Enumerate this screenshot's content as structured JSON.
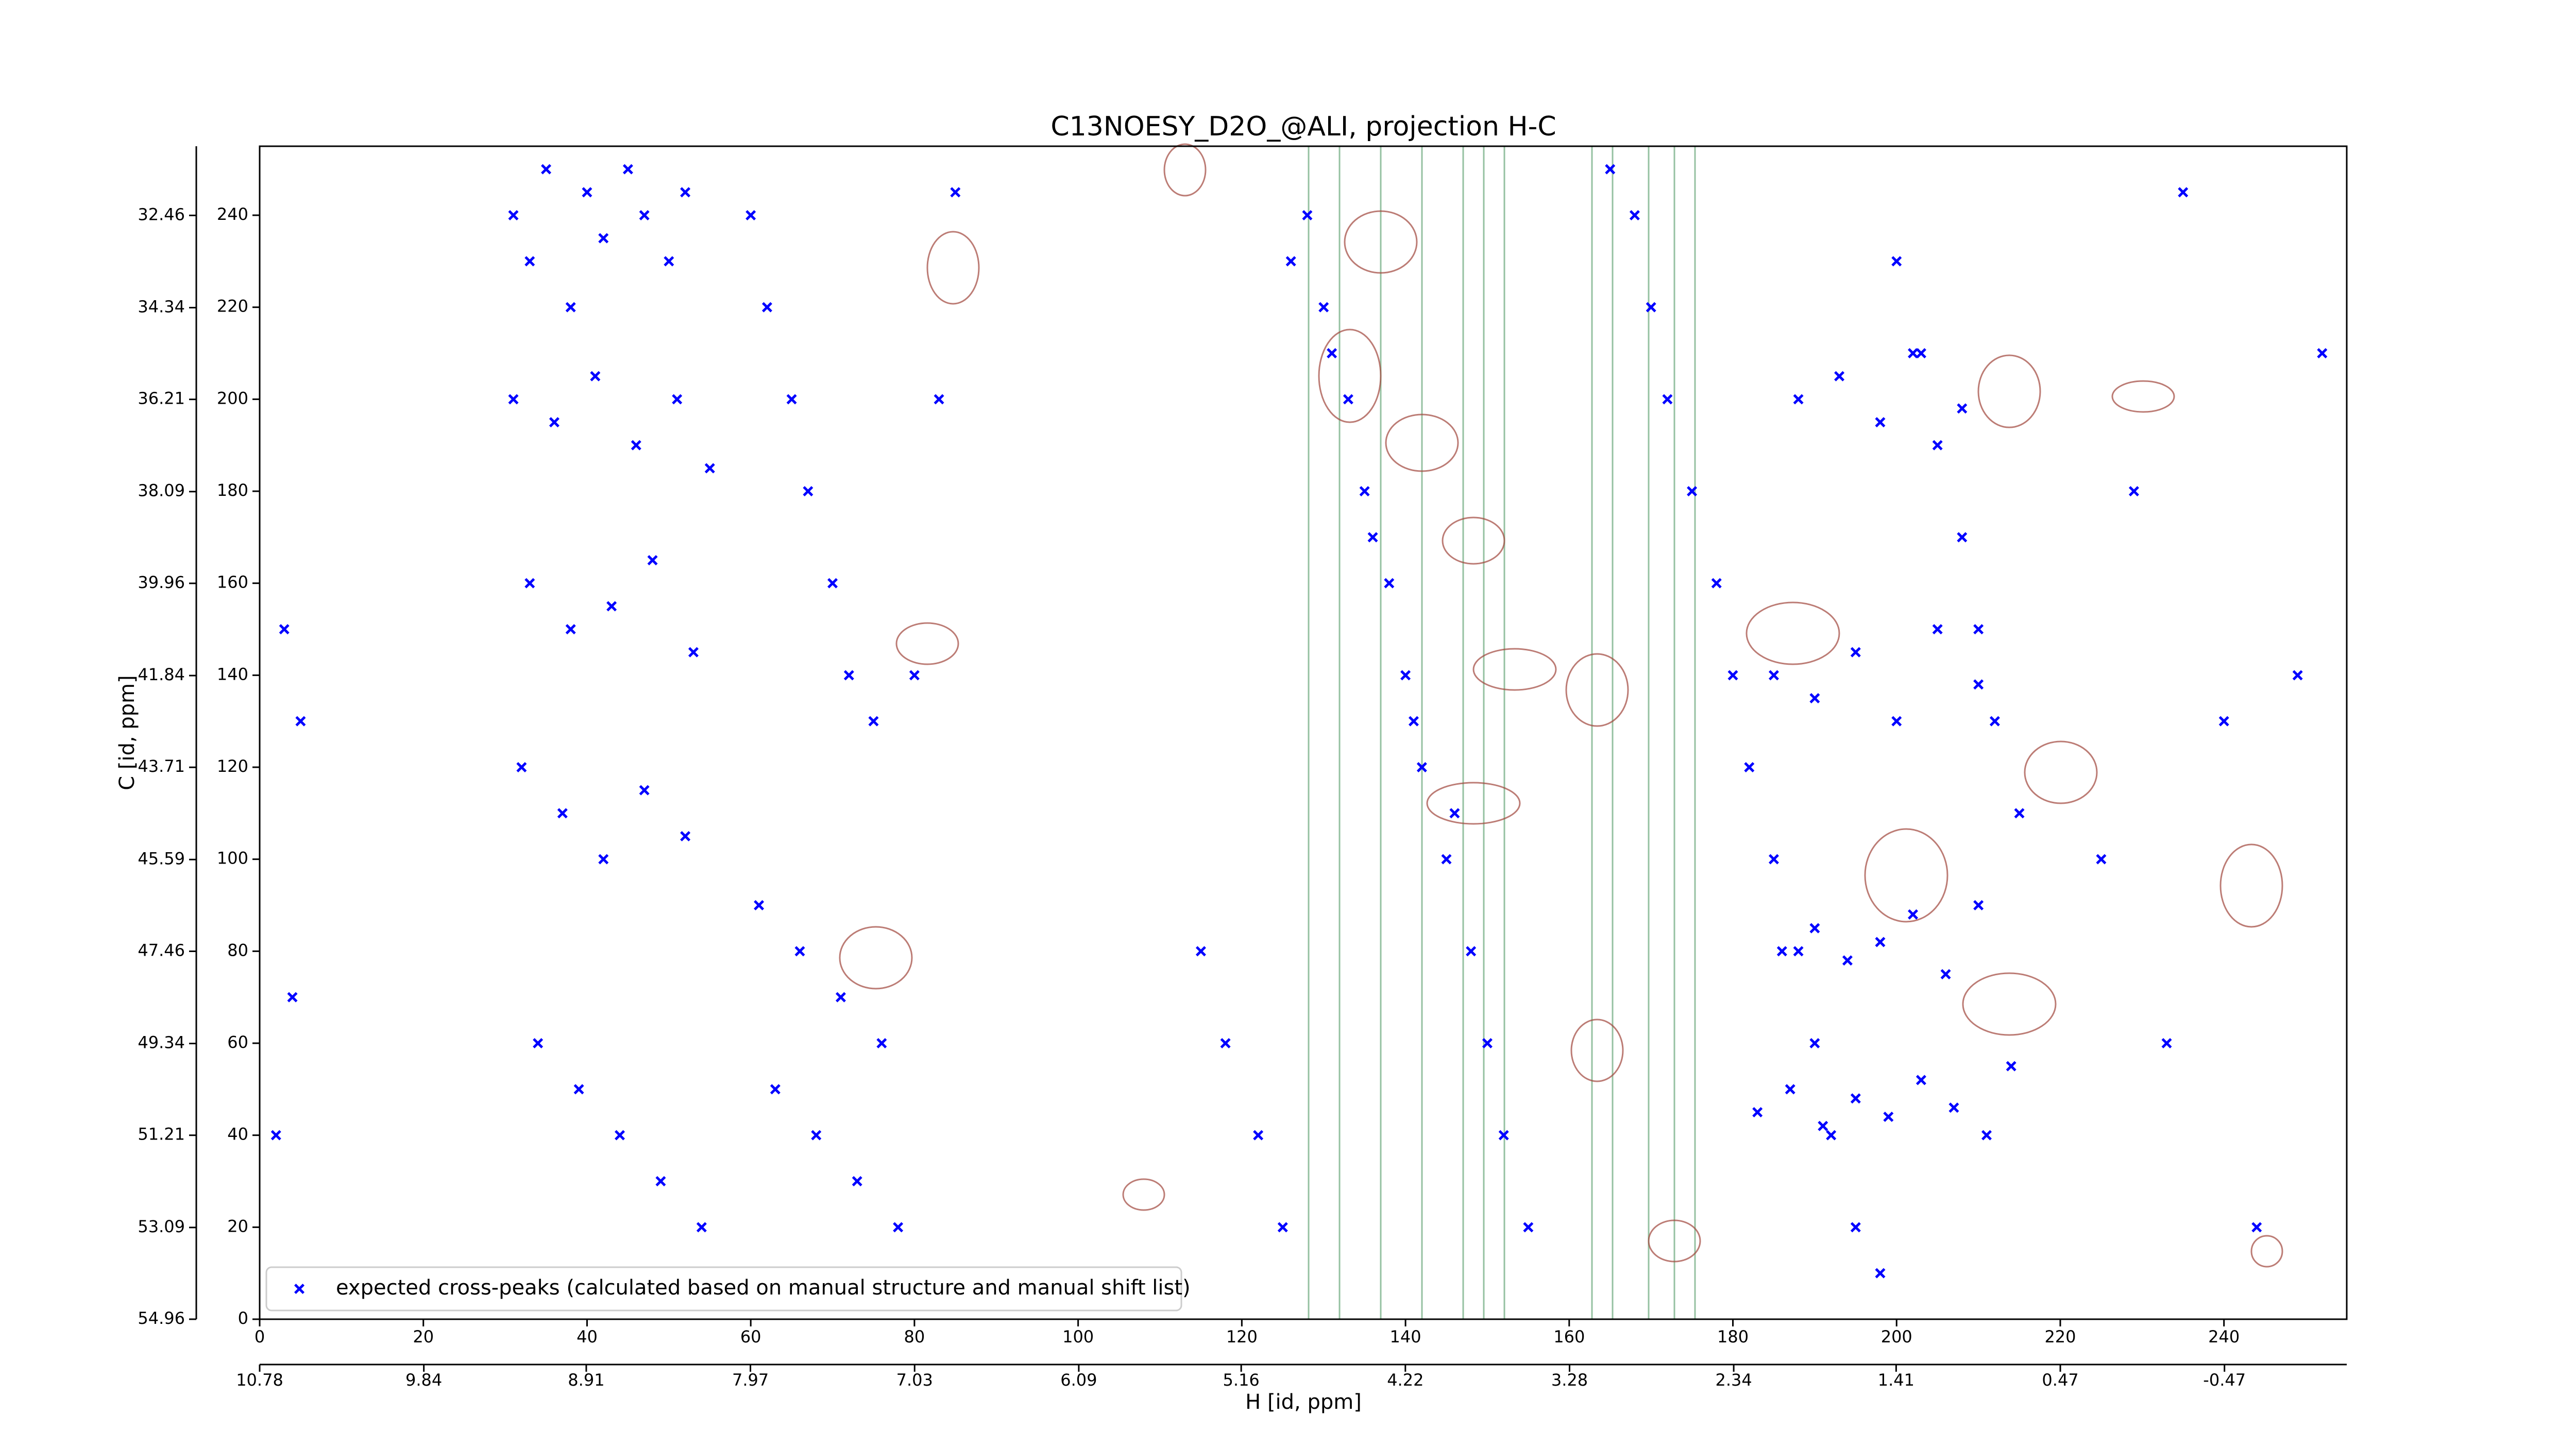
{
  "chart_data": {
    "type": "scatter",
    "title": "C13NOESY_D2O_@ALI, projection H-C",
    "x_label": "H [id, ppm]",
    "y_label": "C [id, ppm]",
    "xlim": [
      0,
      255
    ],
    "ylim": [
      0,
      255
    ],
    "xticks": [
      0,
      20,
      40,
      60,
      80,
      100,
      120,
      140,
      160,
      180,
      200,
      220,
      240
    ],
    "yticks": [
      0,
      20,
      40,
      60,
      80,
      100,
      120,
      140,
      160,
      180,
      200,
      220,
      240
    ],
    "x2lim": [
      10.78,
      -1.17
    ],
    "x2ticks": [
      10.78,
      9.84,
      8.91,
      7.97,
      7.03,
      6.09,
      5.16,
      4.22,
      3.28,
      2.34,
      1.41,
      0.47,
      -0.47
    ],
    "y2lim": [
      54.96,
      31.05
    ],
    "y2ticks": [
      54.96,
      53.09,
      51.21,
      49.34,
      47.46,
      45.59,
      43.71,
      41.84,
      39.96,
      38.09,
      36.21,
      34.34,
      32.46
    ],
    "legend": "lower left",
    "series": [
      {
        "name": "expected cross-peaks (calculated based on manual structure and manual shift list)",
        "color": "#0000ff",
        "x": [
          31,
          33,
          35,
          38,
          40,
          42,
          45,
          47,
          50,
          52,
          31,
          36,
          41,
          46,
          51,
          55,
          33,
          38,
          43,
          48,
          53,
          32,
          37,
          42,
          47,
          52,
          34,
          39,
          44,
          49,
          54,
          60,
          62,
          65,
          67,
          70,
          72,
          75,
          61,
          66,
          71,
          76,
          63,
          68,
          73,
          78,
          80,
          83,
          85,
          115,
          118,
          122,
          125,
          128,
          130,
          133,
          135,
          138,
          140,
          142,
          145,
          148,
          150,
          152,
          155,
          126,
          131,
          136,
          141,
          146,
          165,
          168,
          170,
          172,
          175,
          178,
          180,
          182,
          185,
          188,
          190,
          192,
          195,
          198,
          200,
          202,
          205,
          208,
          210,
          212,
          215,
          183,
          187,
          191,
          195,
          199,
          203,
          207,
          211,
          214,
          186,
          190,
          194,
          198,
          202,
          206,
          210,
          185,
          190,
          195,
          200,
          205,
          210,
          188,
          193,
          198,
          203,
          208,
          3,
          5,
          4,
          2,
          229,
          233,
          240,
          244,
          249,
          252,
          225,
          235
        ],
        "y": [
          240,
          230,
          250,
          220,
          245,
          235,
          250,
          240,
          230,
          245,
          200,
          195,
          205,
          190,
          200,
          185,
          160,
          150,
          155,
          165,
          145,
          120,
          110,
          100,
          115,
          105,
          60,
          50,
          40,
          30,
          20,
          240,
          220,
          200,
          180,
          160,
          140,
          130,
          90,
          80,
          70,
          60,
          50,
          40,
          30,
          20,
          140,
          200,
          245,
          80,
          60,
          40,
          20,
          240,
          220,
          200,
          180,
          160,
          140,
          120,
          100,
          80,
          60,
          40,
          20,
          230,
          210,
          170,
          130,
          110,
          250,
          240,
          220,
          200,
          180,
          160,
          140,
          120,
          100,
          80,
          60,
          40,
          20,
          10,
          230,
          210,
          190,
          170,
          150,
          130,
          110,
          45,
          50,
          42,
          48,
          44,
          52,
          46,
          40,
          55,
          80,
          85,
          78,
          82,
          88,
          75,
          90,
          140,
          135,
          145,
          130,
          150,
          138,
          200,
          205,
          195,
          210,
          198,
          150,
          130,
          70,
          40,
          180,
          60,
          130,
          20,
          140,
          210,
          100,
          245
        ]
      }
    ]
  }
}
